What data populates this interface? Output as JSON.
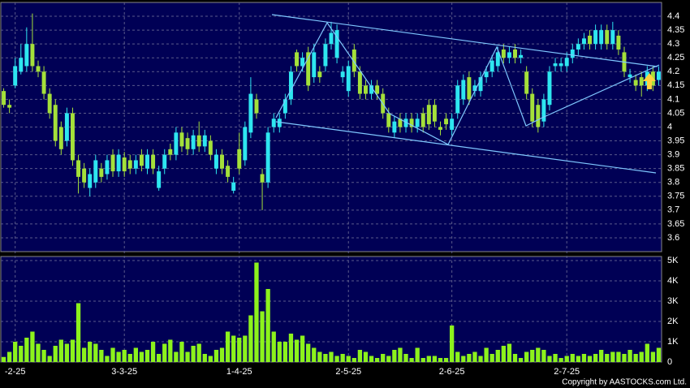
{
  "chart_data": {
    "type": "candlestick",
    "categories": [
      null,
      null,
      "-2-25",
      null,
      null,
      null,
      null,
      null,
      null,
      null,
      null,
      null,
      null,
      null,
      null,
      null,
      null,
      null,
      null,
      null,
      null,
      "3-3-25",
      null,
      null,
      null,
      null,
      null,
      null,
      null,
      null,
      null,
      null,
      null,
      null,
      null,
      null,
      null,
      null,
      null,
      null,
      null,
      "1-4-25",
      null,
      null,
      null,
      null,
      null,
      null,
      null,
      null,
      null,
      null,
      null,
      null,
      null,
      null,
      null,
      null,
      null,
      null,
      "2-5-25",
      null,
      null,
      null,
      null,
      null,
      null,
      null,
      null,
      null,
      null,
      null,
      null,
      null,
      null,
      null,
      null,
      null,
      "2-6-25",
      null,
      null,
      null,
      null,
      null,
      null,
      null,
      null,
      null,
      null,
      null,
      null,
      null,
      null,
      null,
      null,
      null,
      null,
      null,
      "2-7-25",
      null,
      null,
      null,
      null,
      null,
      null,
      null,
      null,
      null,
      null,
      null,
      null,
      null,
      null,
      null,
      null
    ],
    "open": [
      4.13,
      4.08,
      4.15,
      4.2,
      4.22,
      4.3,
      4.22,
      4.2,
      4.12,
      4.08,
      4.0,
      3.95,
      4.05,
      3.88,
      3.85,
      3.78,
      3.8,
      3.85,
      3.83,
      3.9,
      3.84,
      3.89,
      3.88,
      3.85,
      3.9,
      3.85,
      3.9,
      3.78,
      3.85,
      3.92,
      3.9,
      3.98,
      3.96,
      3.92,
      3.97,
      3.93,
      3.95,
      3.85,
      3.9,
      3.86,
      3.77,
      3.92,
      3.88,
      3.98,
      4.1,
      3.83,
      3.8,
      4.0,
      4.0,
      4.05,
      4.1,
      4.27,
      4.22,
      4.27,
      4.18,
      4.2,
      4.22,
      4.3,
      4.25,
      4.18,
      4.13,
      4.28,
      4.2,
      4.15,
      4.12,
      4.15,
      4.12,
      4.05,
      3.98,
      4.03,
      4.0,
      4.03,
      4.0,
      4.05,
      4.08,
      4.08,
      4.0,
      4.03,
      3.99,
      4.05,
      4.1,
      4.18,
      4.13,
      4.13,
      4.18,
      4.2,
      4.22,
      4.28,
      4.25,
      4.28,
      4.25,
      4.2,
      4.12,
      4.08,
      4.02,
      4.08,
      4.22,
      4.22,
      4.22,
      4.25,
      4.28,
      4.3,
      4.33,
      4.3,
      4.3,
      4.35,
      4.3,
      4.33,
      4.27,
      4.18,
      4.17,
      4.18,
      4.15,
      4.2,
      4.17
    ],
    "high": [
      4.14,
      4.1,
      4.25,
      4.3,
      4.36,
      4.41,
      4.24,
      4.22,
      4.14,
      4.1,
      4.02,
      4.07,
      4.07,
      3.9,
      3.87,
      3.85,
      3.9,
      3.87,
      3.9,
      3.92,
      3.92,
      3.91,
      3.9,
      3.9,
      3.92,
      3.92,
      3.92,
      3.86,
      3.92,
      3.94,
      4.0,
      4.0,
      3.98,
      3.99,
      4.02,
      3.99,
      3.97,
      3.92,
      3.92,
      3.88,
      3.82,
      3.98,
      4.02,
      4.18,
      4.12,
      3.85,
      4.0,
      4.05,
      4.05,
      4.12,
      4.22,
      4.28,
      4.27,
      4.29,
      4.3,
      4.22,
      4.32,
      4.38,
      4.37,
      4.22,
      4.24,
      4.3,
      4.22,
      4.17,
      4.17,
      4.17,
      4.14,
      4.07,
      4.04,
      4.05,
      4.05,
      4.05,
      4.05,
      4.07,
      4.1,
      4.1,
      4.02,
      4.05,
      4.05,
      4.17,
      4.19,
      4.2,
      4.17,
      4.2,
      4.22,
      4.26,
      4.29,
      4.3,
      4.29,
      4.3,
      4.28,
      4.22,
      4.14,
      4.1,
      4.12,
      4.22,
      4.25,
      4.25,
      4.27,
      4.3,
      4.32,
      4.34,
      4.35,
      4.37,
      4.37,
      4.37,
      4.38,
      4.35,
      4.29,
      4.21,
      4.19,
      4.2,
      4.22,
      4.22,
      4.22
    ],
    "low": [
      4.07,
      4.05,
      4.14,
      4.19,
      4.2,
      4.2,
      4.18,
      4.1,
      4.03,
      3.93,
      3.9,
      3.93,
      3.86,
      3.76,
      3.78,
      3.75,
      3.78,
      3.8,
      3.81,
      3.82,
      3.82,
      3.82,
      3.83,
      3.83,
      3.84,
      3.83,
      3.83,
      3.77,
      3.83,
      3.88,
      3.88,
      3.91,
      3.9,
      3.9,
      3.91,
      3.91,
      3.88,
      3.83,
      3.83,
      3.8,
      3.76,
      3.83,
      3.86,
      3.96,
      4.03,
      3.7,
      3.78,
      3.98,
      3.98,
      4.03,
      4.08,
      4.2,
      4.2,
      4.13,
      4.16,
      4.16,
      4.2,
      4.28,
      4.23,
      4.16,
      4.11,
      4.18,
      4.1,
      4.1,
      4.1,
      4.1,
      4.03,
      3.98,
      3.96,
      3.98,
      3.98,
      3.98,
      3.98,
      3.98,
      3.99,
      4.0,
      3.97,
      3.99,
      3.97,
      4.03,
      4.08,
      4.08,
      4.11,
      4.11,
      4.16,
      4.18,
      4.2,
      4.23,
      4.23,
      4.23,
      4.23,
      4.1,
      4.0,
      3.98,
      4.0,
      4.06,
      4.2,
      4.2,
      4.2,
      4.23,
      4.26,
      4.28,
      4.28,
      4.28,
      4.28,
      4.28,
      4.28,
      4.26,
      4.18,
      4.16,
      4.13,
      4.11,
      4.13,
      4.13,
      4.15
    ],
    "close": [
      4.08,
      4.07,
      4.22,
      4.25,
      4.3,
      4.22,
      4.2,
      4.12,
      4.05,
      3.95,
      3.92,
      4.05,
      3.88,
      3.82,
      3.8,
      3.83,
      3.88,
      3.82,
      3.88,
      3.84,
      3.9,
      3.84,
      3.85,
      3.88,
      3.86,
      3.9,
      3.85,
      3.84,
      3.9,
      3.9,
      3.98,
      3.93,
      3.92,
      3.97,
      3.93,
      3.97,
      3.9,
      3.9,
      3.85,
      3.82,
      3.8,
      3.85,
      4.0,
      4.12,
      4.05,
      3.8,
      3.98,
      4.03,
      4.03,
      4.1,
      4.2,
      4.22,
      4.25,
      4.15,
      4.27,
      4.18,
      4.3,
      4.34,
      4.35,
      4.2,
      4.22,
      4.2,
      4.12,
      4.12,
      4.15,
      4.12,
      4.05,
      4.0,
      4.02,
      4.0,
      4.03,
      4.0,
      4.03,
      4.0,
      4.01,
      4.02,
      3.99,
      4.01,
      4.03,
      4.15,
      4.17,
      4.1,
      4.15,
      4.18,
      4.2,
      4.24,
      4.27,
      4.25,
      4.27,
      4.25,
      4.26,
      4.12,
      4.02,
      4.0,
      4.1,
      4.2,
      4.23,
      4.23,
      4.25,
      4.28,
      4.3,
      4.32,
      4.3,
      4.35,
      4.35,
      4.3,
      4.35,
      4.28,
      4.2,
      4.19,
      4.15,
      4.15,
      4.2,
      4.15,
      4.2
    ],
    "up_color": "#2ee6f0",
    "down_color": "#a4e03a",
    "ylim": [
      3.55,
      4.45
    ],
    "yticks": [
      4.4,
      4.35,
      4.3,
      4.25,
      4.2,
      4.15,
      4.1,
      4.05,
      4,
      3.95,
      3.9,
      3.85,
      3.8,
      3.75,
      3.7,
      3.65,
      3.6
    ],
    "grid": true,
    "volume": {
      "type": "bar",
      "color": "#8cf21c",
      "values": [
        250,
        500,
        1000,
        800,
        1200,
        1500,
        900,
        600,
        300,
        800,
        1100,
        900,
        1100,
        2900,
        700,
        1000,
        900,
        600,
        300,
        700,
        500,
        600,
        400,
        700,
        500,
        600,
        1000,
        400,
        900,
        1100,
        500,
        1000,
        500,
        800,
        900,
        400,
        300,
        600,
        700,
        1500,
        1300,
        1200,
        1300,
        2300,
        4900,
        2500,
        3600,
        1500,
        1000,
        1000,
        1400,
        1100,
        1300,
        900,
        700,
        500,
        400,
        500,
        300,
        400,
        300,
        200,
        600,
        500,
        300,
        200,
        400,
        300,
        600,
        700,
        400,
        200,
        700,
        200,
        300,
        300,
        200,
        200,
        1800,
        500,
        300,
        400,
        500,
        300,
        700,
        400,
        600,
        800,
        900,
        400,
        200,
        500,
        600,
        700,
        600,
        300,
        400,
        200,
        300,
        400,
        300,
        400,
        300,
        400,
        600,
        400,
        500,
        500,
        400,
        600,
        400,
        500,
        900,
        500,
        700
      ],
      "ylim": [
        0,
        5200
      ],
      "yticks": [
        0,
        {
          "value": 1000,
          "label": "1K"
        },
        {
          "value": 2000,
          "label": "2K"
        },
        {
          "value": 3000,
          "label": "3K"
        },
        {
          "value": 4000,
          "label": "4K"
        },
        {
          "value": 5000,
          "label": "5K"
        }
      ]
    },
    "copyright": "Copyright by AASTOCKS.com Ltd."
  }
}
